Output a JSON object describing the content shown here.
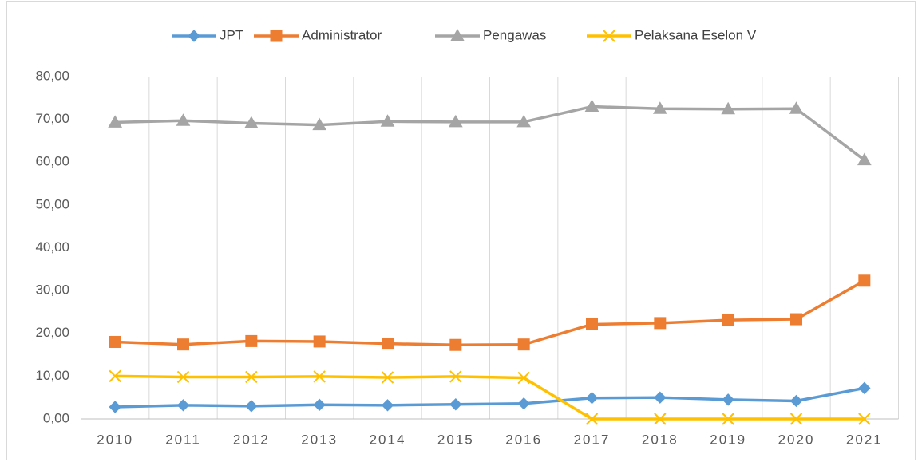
{
  "chart_data": {
    "type": "line",
    "categories": [
      "2010",
      "2011",
      "2012",
      "2013",
      "2014",
      "2015",
      "2016",
      "2017",
      "2018",
      "2019",
      "2020",
      "2021"
    ],
    "series": [
      {
        "name": "JPT",
        "color": "#5b9bd5",
        "marker": "diamond",
        "values": [
          2.8,
          3.2,
          3.0,
          3.3,
          3.2,
          3.4,
          3.6,
          4.9,
          5.0,
          4.5,
          4.2,
          7.2
        ]
      },
      {
        "name": "Administrator",
        "color": "#ed7d31",
        "marker": "square",
        "values": [
          18.0,
          17.4,
          18.2,
          18.1,
          17.6,
          17.3,
          17.4,
          22.1,
          22.4,
          23.1,
          23.3,
          32.3
        ]
      },
      {
        "name": "Pengawas",
        "color": "#a5a5a5",
        "marker": "triangle",
        "values": [
          69.3,
          69.7,
          69.1,
          68.7,
          69.5,
          69.4,
          69.4,
          73.0,
          72.5,
          72.4,
          72.5,
          60.5
        ]
      },
      {
        "name": "Pelaksana Eselon V",
        "color": "#ffc000",
        "marker": "x",
        "values": [
          10.0,
          9.8,
          9.8,
          9.9,
          9.7,
          9.9,
          9.6,
          0,
          0,
          0,
          0,
          0
        ]
      }
    ],
    "ylim": [
      0,
      80
    ],
    "yticks": [
      {
        "value": 0,
        "label": "0,00"
      },
      {
        "value": 10,
        "label": "10,00"
      },
      {
        "value": 20,
        "label": "20,00"
      },
      {
        "value": 30,
        "label": "30,00"
      },
      {
        "value": 40,
        "label": "40,00"
      },
      {
        "value": 50,
        "label": "50,00"
      },
      {
        "value": 60,
        "label": "60,00"
      },
      {
        "value": 70,
        "label": "70,00"
      },
      {
        "value": 80,
        "label": "80,00"
      }
    ],
    "legend": "top"
  }
}
